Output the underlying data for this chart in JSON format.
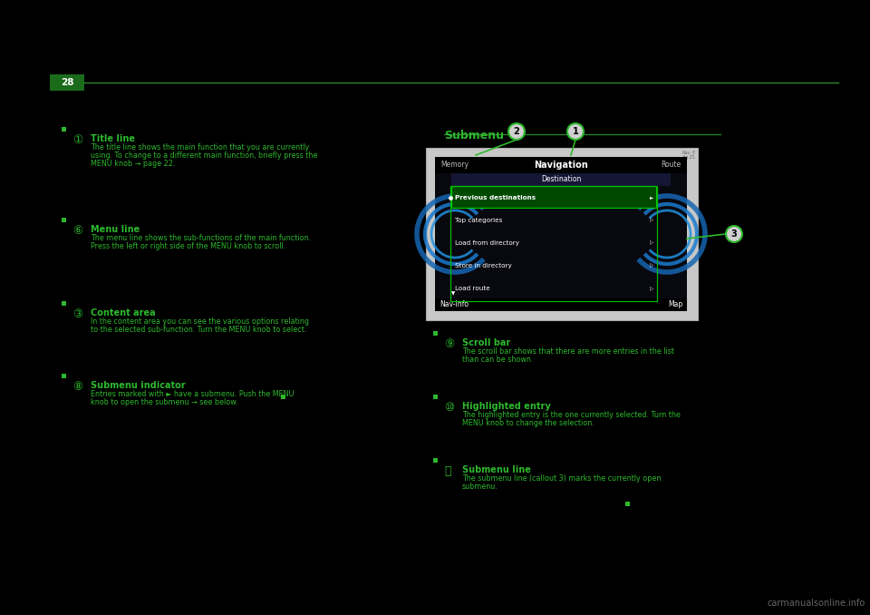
{
  "page_number": "28",
  "background_color": "#000000",
  "bright_green": "#2db82d",
  "header_line_color": "#2a8a2a",
  "submenu_title": "Submenu",
  "page_num_bg": "#1a6b1a",
  "menu_items": [
    "Previous destinations",
    "Top categories",
    "Load from directory",
    "Store in directory",
    "Load route"
  ],
  "bottom_left": "Nav-Info",
  "bottom_right": "Map",
  "nav_title": "Navigation",
  "nav_left": "Memory",
  "nav_right": "Route",
  "dest_title": "Destination",
  "left_blocks": [
    {
      "num": "①",
      "heading": "Title line",
      "body": [
        "The title line shows the main function that you are currently",
        "using. To change to a different main function, briefly press the",
        "MENU knob → page 22."
      ]
    },
    {
      "num": "⑥",
      "heading": "Menu line",
      "body": [
        "The menu line shows the sub-functions of the main function.",
        "Press the left or right side of the MENU knob to scroll."
      ]
    },
    {
      "num": "③",
      "heading": "Content area",
      "body": [
        "In the content area you can see the various options relating",
        "to the selected sub-function. Turn the MENU knob to select."
      ]
    },
    {
      "num": "⑧",
      "heading": "Submenu indicator",
      "body": [
        "Entries marked with ► have a submenu. Push the MENU",
        "knob to open the submenu → see below."
      ]
    }
  ],
  "right_blocks": [
    {
      "num": "⑨",
      "heading": "Scroll bar",
      "body": [
        "The scroll bar shows that there are more entries in the list",
        "than can be shown."
      ]
    },
    {
      "num": "⑩",
      "heading": "Highlighted entry",
      "body": [
        "The highlighted entry is the one currently selected. Turn the",
        "MENU knob to change the selection."
      ]
    },
    {
      "num": "⑪",
      "heading": "Submenu line",
      "body": [
        "The submenu line (callout 3) marks the currently open",
        "submenu."
      ]
    }
  ],
  "watermark": "carmanualsonline.info"
}
